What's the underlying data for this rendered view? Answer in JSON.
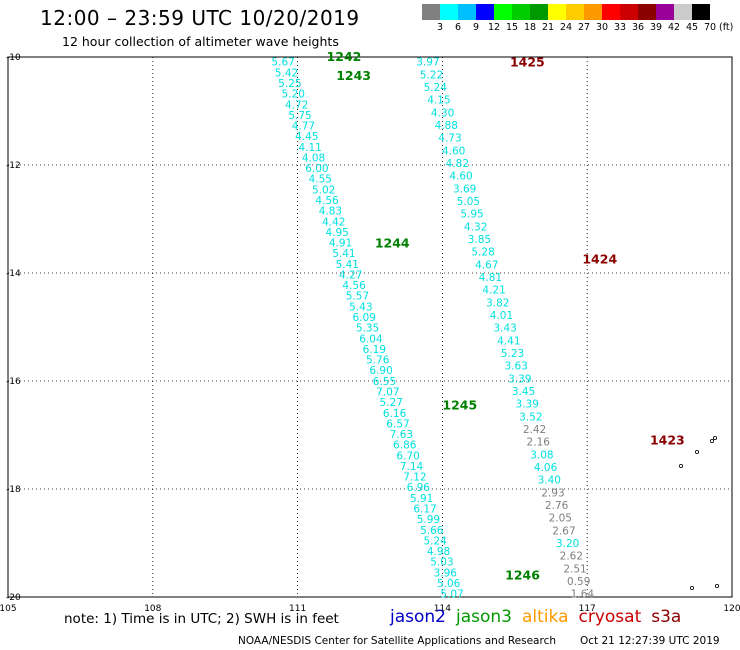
{
  "header": {
    "title": "12:00 – 23:59 UTC 10/20/2019",
    "subtitle": "12 hour collection of altimeter wave heights"
  },
  "scale": {
    "unit": "(ft)",
    "colors": [
      "#808080",
      "#00ffff",
      "#00bfff",
      "#0000ff",
      "#00ff00",
      "#00cc00",
      "#009900",
      "#ffff00",
      "#ffcc00",
      "#ff9900",
      "#ff0000",
      "#cc0000",
      "#8b0000",
      "#990099",
      "#cccccc",
      "#000000"
    ],
    "labels": [
      "",
      "3",
      "6",
      "9",
      "12",
      "15",
      "18",
      "21",
      "24",
      "27",
      "30",
      "33",
      "36",
      "39",
      "42",
      "45",
      "70"
    ]
  },
  "map": {
    "lon_ticks": [
      {
        "value": 105,
        "label": "105"
      },
      {
        "value": 108,
        "label": "108"
      },
      {
        "value": 111,
        "label": "111"
      },
      {
        "value": 114,
        "label": "114"
      },
      {
        "value": 117,
        "label": "117"
      },
      {
        "value": 120,
        "label": "120"
      }
    ],
    "lat_ticks": [
      {
        "value": -10,
        "label": "-10"
      },
      {
        "value": -12,
        "label": "-12"
      },
      {
        "value": -14,
        "label": "-14"
      },
      {
        "value": -16,
        "label": "-16"
      },
      {
        "value": -18,
        "label": "-18"
      },
      {
        "value": -20,
        "label": "-20"
      }
    ],
    "lon_range": [
      105,
      120
    ],
    "lat_range": [
      -20,
      -10
    ],
    "tracks": [
      {
        "name": "jason3",
        "start_lon": 110.7,
        "start_lat": -10.05,
        "end_lon": 114.2,
        "end_lat": -19.9,
        "color": "#00e0e0",
        "values": [
          "5.67",
          "5.42",
          "5.25",
          "5.20",
          "4.72",
          "5.75",
          "4.77",
          "4.45",
          "4.11",
          "4.08",
          "6.00",
          "4.55",
          "5.02",
          "4.56",
          "4.83",
          "4.42",
          "4.95",
          "4.91",
          "5.41",
          "5.41",
          "4.27",
          "4.56",
          "5.57",
          "5.43",
          "6.09",
          "5.35",
          "6.04",
          "6.19",
          "5.76",
          "6.90",
          "6.55",
          "7.07",
          "5.27",
          "6.16",
          "6.57",
          "7.63",
          "6.86",
          "6.70",
          "7.14",
          "7.12",
          "6.96",
          "5.91",
          "6.17",
          "5.99",
          "5.66",
          "5.24",
          "4.98",
          "5.03",
          "3.96",
          "5.06",
          "5.07"
        ],
        "grey_from": null
      },
      {
        "name": "cryosat",
        "start_lon": 113.7,
        "start_lat": -10.05,
        "end_lon": 116.9,
        "end_lat": -19.9,
        "color": "#00e0e0",
        "values": [
          "3.97",
          "5.22",
          "5.24",
          "4.15",
          "4.30",
          "4.88",
          "4.73",
          "4.60",
          "4.82",
          "4.60",
          "3.69",
          "5.05",
          "5.95",
          "4.32",
          "3.85",
          "5.28",
          "4.67",
          "4.81",
          "4.21",
          "3.82",
          "4.01",
          "3.43",
          "4.41",
          "5.23",
          "3.63",
          "3.39",
          "3.45",
          "3.39",
          "3.52",
          "2.42",
          "2.16",
          "3.08",
          "4.06",
          "3.40",
          "2.93",
          "2.76",
          "2.05",
          "2.67",
          "3.20",
          "2.62",
          "2.51",
          "0.59",
          "1.64"
        ],
        "grey_from": 29,
        "grey_except": [
          31,
          32,
          33,
          38
        ]
      }
    ],
    "pass_labels": [
      {
        "text": "1242",
        "lon": 111.6,
        "lat": -10.0,
        "color": "#008000"
      },
      {
        "text": "1243",
        "lon": 111.8,
        "lat": -10.35,
        "color": "#008000"
      },
      {
        "text": "1244",
        "lon": 112.6,
        "lat": -13.45,
        "color": "#008000"
      },
      {
        "text": "1245",
        "lon": 114.0,
        "lat": -16.45,
        "color": "#008000"
      },
      {
        "text": "1246",
        "lon": 115.3,
        "lat": -19.6,
        "color": "#008000"
      },
      {
        "text": "1425",
        "lon": 115.4,
        "lat": -10.1,
        "color": "#8b0000"
      },
      {
        "text": "1424",
        "lon": 116.9,
        "lat": -13.75,
        "color": "#8b0000"
      },
      {
        "text": "1423",
        "lon": 118.3,
        "lat": -17.1,
        "color": "#8b0000"
      }
    ]
  },
  "footer": {
    "note": "note:  1) Time is in UTC;  2) SWH is in feet",
    "satellites": [
      {
        "name": "jason2",
        "color": "#0000cc"
      },
      {
        "name": "jason3",
        "color": "#009900"
      },
      {
        "name": "altika",
        "color": "#ff9900"
      },
      {
        "name": "cryosat",
        "color": "#cc0000"
      },
      {
        "name": "s3a",
        "color": "#8b0000"
      }
    ],
    "credit": "NOAA/NESDIS Center for Satellite Applications and Research",
    "timestamp": "Oct 21 12:27:39 UTC 2019"
  }
}
